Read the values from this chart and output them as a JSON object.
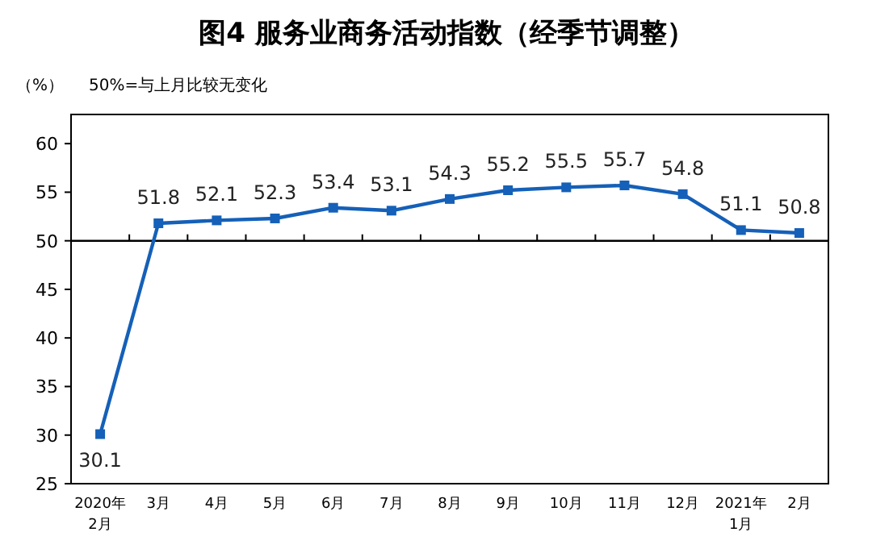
{
  "chart_data": {
    "type": "line",
    "title": "图4  服务业商务活动指数（经季节调整）",
    "ylabel": "（%）",
    "annotations": [
      "50%=与上月比较无变化"
    ],
    "categories": [
      "2020年\n2月",
      "3月",
      "4月",
      "5月",
      "6月",
      "7月",
      "8月",
      "9月",
      "10月",
      "11月",
      "12月",
      "2021年\n1月",
      "2月"
    ],
    "series": [
      {
        "color": "#1560b8",
        "values": [
          30.1,
          51.8,
          52.1,
          52.3,
          53.4,
          53.1,
          54.3,
          55.2,
          55.5,
          55.7,
          54.8,
          51.1,
          50.8
        ]
      }
    ],
    "ylim": [
      25,
      63
    ],
    "yticks": [
      25,
      30,
      35,
      40,
      45,
      50,
      55,
      60
    ],
    "ref_lines": [
      {
        "axis": "y",
        "value": 50,
        "color": "#000000"
      }
    ],
    "marker": "square",
    "data_labels": true,
    "grid": false
  }
}
